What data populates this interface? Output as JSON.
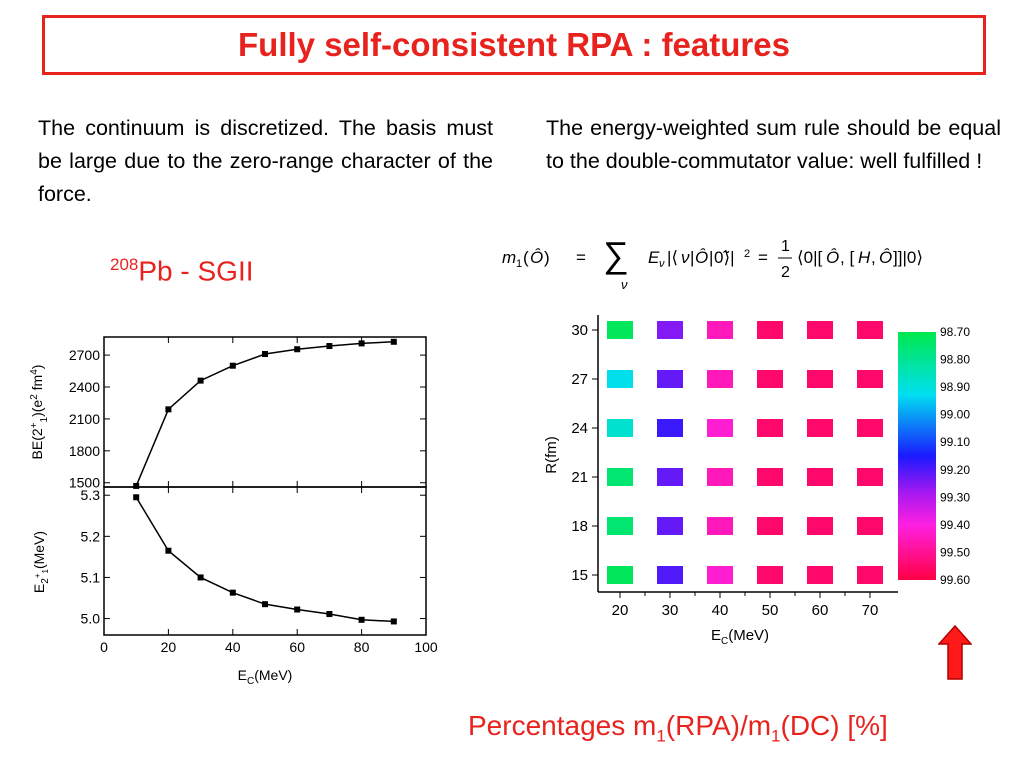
{
  "title": "Fully self-consistent RPA : features",
  "left_text": "The continuum is discretized. The basis must be large due to the zero-range character of the force.",
  "right_text": "The energy-weighted sum rule should be equal to the double-commutator value: well fulfilled !",
  "subtitle": {
    "mass_number": "208",
    "label": "Pb - SGII"
  },
  "bottom_caption": {
    "t1": "Percentages m",
    "s1": "1",
    "t2": "(RPA)/m",
    "s2": "1",
    "t3": "(DC) [%]"
  },
  "colors": {
    "accent": "#e8231e"
  },
  "chart_data": [
    {
      "type": "line",
      "ylabel": "BE(2+1)(e2 fm4)",
      "xlim": [
        0,
        100
      ],
      "ylim": [
        1460,
        2870
      ],
      "y_ticks": [
        "1500",
        "1800",
        "2100",
        "2400",
        "2700"
      ],
      "x": [
        10,
        20,
        30,
        40,
        50,
        60,
        70,
        80,
        90
      ],
      "values": [
        1470,
        2190,
        2460,
        2600,
        2710,
        2755,
        2785,
        2810,
        2825
      ]
    },
    {
      "type": "line",
      "xlabel": "EC(MeV)",
      "ylabel": "E2+1(MeV)",
      "xlim": [
        0,
        100
      ],
      "ylim": [
        4.96,
        5.32
      ],
      "x_ticks": [
        "0",
        "20",
        "40",
        "60",
        "80",
        "100"
      ],
      "y_ticks": [
        "5.0",
        "5.1",
        "5.2",
        "5.3"
      ],
      "x": [
        10,
        20,
        30,
        40,
        50,
        60,
        70,
        80,
        90
      ],
      "values": [
        5.295,
        5.165,
        5.1,
        5.063,
        5.035,
        5.022,
        5.011,
        4.997,
        4.993
      ]
    },
    {
      "type": "heatmap",
      "xlabel": "EC(MeV)",
      "ylabel": "R(fm)",
      "x": [
        20,
        30,
        40,
        50,
        60,
        70
      ],
      "y": [
        30,
        27,
        24,
        21,
        18,
        15
      ],
      "values": [
        [
          98.72,
          99.25,
          99.45,
          99.55,
          99.55,
          99.55
        ],
        [
          98.92,
          99.22,
          99.45,
          99.55,
          99.55,
          99.55
        ],
        [
          98.88,
          99.18,
          99.42,
          99.55,
          99.55,
          99.55
        ],
        [
          98.75,
          99.22,
          99.45,
          99.55,
          99.55,
          99.55
        ],
        [
          98.75,
          99.22,
          99.45,
          99.55,
          99.55,
          99.55
        ],
        [
          98.72,
          99.2,
          99.42,
          99.55,
          99.55,
          99.55
        ]
      ],
      "colorbar_labels": [
        "98.70",
        "98.80",
        "98.90",
        "99.00",
        "99.10",
        "99.20",
        "99.30",
        "99.40",
        "99.50",
        "99.60"
      ],
      "colorbar_range": [
        98.7,
        99.6
      ]
    }
  ]
}
